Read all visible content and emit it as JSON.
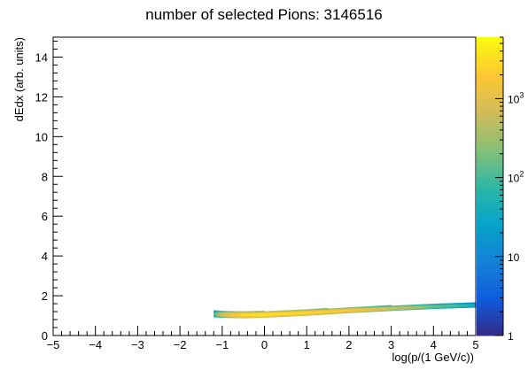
{
  "chart_data": {
    "type": "heatmap",
    "title": "number of selected Pions:  3146516",
    "xlabel": "log(p/(1 GeV/c))",
    "ylabel": "dEdx (arb. units)",
    "xlim": [
      -5,
      5
    ],
    "ylim": [
      0,
      15
    ],
    "x_ticks": [
      "-5",
      "-4",
      "-3",
      "-2",
      "-1",
      "0",
      "1",
      "2",
      "3",
      "4",
      "5"
    ],
    "y_ticks": [
      "0",
      "2",
      "4",
      "6",
      "8",
      "10",
      "12",
      "14"
    ],
    "z_scale": "log",
    "z_range": [
      1,
      6000
    ],
    "z_tick_values": [
      1,
      10,
      100,
      1000
    ],
    "z_tick_bases": [
      "1",
      "10",
      "10",
      "10"
    ],
    "z_tick_exponents": [
      "",
      "",
      "2",
      "3"
    ],
    "palette": [
      "#352a87",
      "#0f5cdd",
      "#1481d6",
      "#06a4ca",
      "#2eb7a4",
      "#87bf77",
      "#d1bb59",
      "#fec832",
      "#f9fb0e"
    ],
    "band": {
      "x": [
        -1.2,
        -1.0,
        -0.5,
        0.0,
        1.0,
        2.0,
        3.0,
        4.0,
        5.0
      ],
      "center_y": [
        1.1,
        1.07,
        1.05,
        1.07,
        1.16,
        1.28,
        1.38,
        1.48,
        1.55
      ],
      "half_width": [
        0.16,
        0.16,
        0.16,
        0.15,
        0.14,
        0.13,
        0.12,
        0.12,
        0.12
      ],
      "peak_density": [
        20,
        800,
        3000,
        4000,
        3000,
        2000,
        800,
        200,
        40
      ]
    }
  }
}
